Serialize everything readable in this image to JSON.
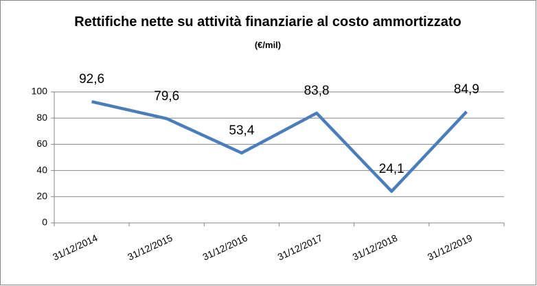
{
  "chart_data": {
    "type": "line",
    "title": "Rettifiche nette su attività finanziarie al costo ammortizzato",
    "unit": "(€/mil)",
    "categories": [
      "31/12/2014",
      "31/12/2015",
      "31/12/2016",
      "31/12/2017",
      "31/12/2018",
      "31/12/2019"
    ],
    "values": [
      92.6,
      79.6,
      53.4,
      83.8,
      24.1,
      84.9
    ],
    "value_labels": [
      "92,6",
      "79,6",
      "53,4",
      "83,8",
      "24,1",
      "84,9"
    ],
    "color": "#4a7ebb",
    "ylim": [
      0,
      100
    ],
    "yticks": [
      0,
      20,
      40,
      60,
      80,
      100
    ],
    "grid": true
  }
}
